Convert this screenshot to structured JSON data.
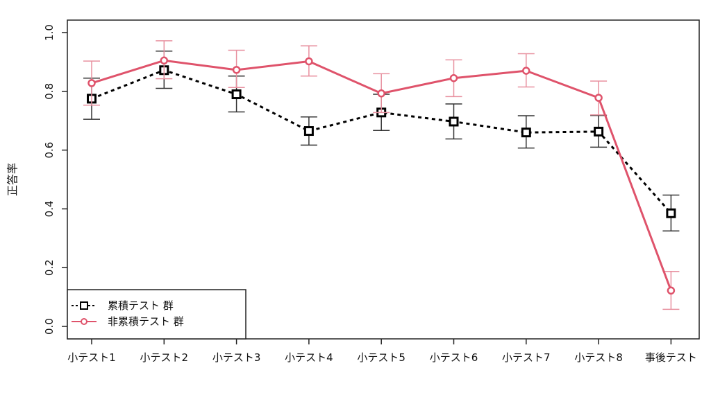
{
  "chart_data": {
    "type": "line",
    "title": "",
    "xlabel": "",
    "ylabel": "正答率",
    "categories": [
      "小テスト1",
      "小テスト2",
      "小テスト3",
      "小テスト4",
      "小テスト5",
      "小テスト6",
      "小テスト7",
      "小テスト8",
      "事後テスト"
    ],
    "ylim": [
      0,
      1.0
    ],
    "yticks": [
      "0.0",
      "0.2",
      "0.4",
      "0.6",
      "0.8",
      "1.0"
    ],
    "grid": false,
    "legend_position": "bottom-left",
    "series": [
      {
        "name": "累積テスト 群",
        "color": "#000000",
        "line_style": "dotted",
        "marker": "square",
        "values": [
          0.775,
          0.872,
          0.79,
          0.665,
          0.728,
          0.697,
          0.66,
          0.663,
          0.385
        ],
        "error_low": [
          0.705,
          0.81,
          0.73,
          0.617,
          0.667,
          0.638,
          0.607,
          0.61,
          0.325
        ],
        "error_high": [
          0.845,
          0.937,
          0.852,
          0.713,
          0.79,
          0.757,
          0.717,
          0.718,
          0.447
        ]
      },
      {
        "name": "非累積テスト 群",
        "color": "#df536b",
        "line_style": "solid",
        "marker": "circle",
        "values": [
          0.828,
          0.905,
          0.873,
          0.902,
          0.793,
          0.845,
          0.87,
          0.778,
          0.122
        ],
        "error_low": [
          0.753,
          0.843,
          0.813,
          0.852,
          0.728,
          0.782,
          0.815,
          0.72,
          0.058
        ],
        "error_high": [
          0.903,
          0.972,
          0.94,
          0.955,
          0.86,
          0.907,
          0.928,
          0.835,
          0.187
        ]
      }
    ]
  }
}
